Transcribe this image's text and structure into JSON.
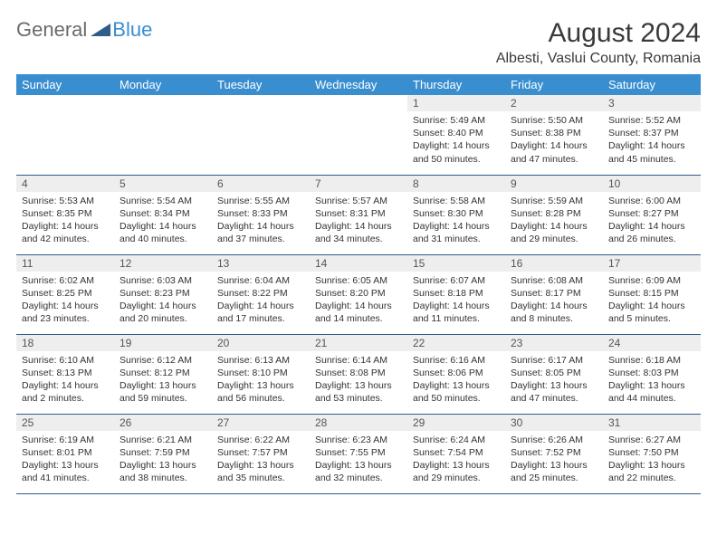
{
  "brand": {
    "general": "General",
    "blue": "Blue"
  },
  "header": {
    "title": "August 2024",
    "location": "Albesti, Vaslui County, Romania"
  },
  "colors": {
    "header_bar": "#398ed0",
    "header_text": "#ffffff",
    "daynum_bg": "#eeeeee",
    "row_border": "#2f5d8a",
    "logo_gray": "#6b6b6b",
    "logo_blue": "#398ed0"
  },
  "days_of_week": [
    "Sunday",
    "Monday",
    "Tuesday",
    "Wednesday",
    "Thursday",
    "Friday",
    "Saturday"
  ],
  "weeks": [
    [
      null,
      null,
      null,
      null,
      {
        "n": "1",
        "sunrise": "Sunrise: 5:49 AM",
        "sunset": "Sunset: 8:40 PM",
        "dl": "Daylight: 14 hours and 50 minutes."
      },
      {
        "n": "2",
        "sunrise": "Sunrise: 5:50 AM",
        "sunset": "Sunset: 8:38 PM",
        "dl": "Daylight: 14 hours and 47 minutes."
      },
      {
        "n": "3",
        "sunrise": "Sunrise: 5:52 AM",
        "sunset": "Sunset: 8:37 PM",
        "dl": "Daylight: 14 hours and 45 minutes."
      }
    ],
    [
      {
        "n": "4",
        "sunrise": "Sunrise: 5:53 AM",
        "sunset": "Sunset: 8:35 PM",
        "dl": "Daylight: 14 hours and 42 minutes."
      },
      {
        "n": "5",
        "sunrise": "Sunrise: 5:54 AM",
        "sunset": "Sunset: 8:34 PM",
        "dl": "Daylight: 14 hours and 40 minutes."
      },
      {
        "n": "6",
        "sunrise": "Sunrise: 5:55 AM",
        "sunset": "Sunset: 8:33 PM",
        "dl": "Daylight: 14 hours and 37 minutes."
      },
      {
        "n": "7",
        "sunrise": "Sunrise: 5:57 AM",
        "sunset": "Sunset: 8:31 PM",
        "dl": "Daylight: 14 hours and 34 minutes."
      },
      {
        "n": "8",
        "sunrise": "Sunrise: 5:58 AM",
        "sunset": "Sunset: 8:30 PM",
        "dl": "Daylight: 14 hours and 31 minutes."
      },
      {
        "n": "9",
        "sunrise": "Sunrise: 5:59 AM",
        "sunset": "Sunset: 8:28 PM",
        "dl": "Daylight: 14 hours and 29 minutes."
      },
      {
        "n": "10",
        "sunrise": "Sunrise: 6:00 AM",
        "sunset": "Sunset: 8:27 PM",
        "dl": "Daylight: 14 hours and 26 minutes."
      }
    ],
    [
      {
        "n": "11",
        "sunrise": "Sunrise: 6:02 AM",
        "sunset": "Sunset: 8:25 PM",
        "dl": "Daylight: 14 hours and 23 minutes."
      },
      {
        "n": "12",
        "sunrise": "Sunrise: 6:03 AM",
        "sunset": "Sunset: 8:23 PM",
        "dl": "Daylight: 14 hours and 20 minutes."
      },
      {
        "n": "13",
        "sunrise": "Sunrise: 6:04 AM",
        "sunset": "Sunset: 8:22 PM",
        "dl": "Daylight: 14 hours and 17 minutes."
      },
      {
        "n": "14",
        "sunrise": "Sunrise: 6:05 AM",
        "sunset": "Sunset: 8:20 PM",
        "dl": "Daylight: 14 hours and 14 minutes."
      },
      {
        "n": "15",
        "sunrise": "Sunrise: 6:07 AM",
        "sunset": "Sunset: 8:18 PM",
        "dl": "Daylight: 14 hours and 11 minutes."
      },
      {
        "n": "16",
        "sunrise": "Sunrise: 6:08 AM",
        "sunset": "Sunset: 8:17 PM",
        "dl": "Daylight: 14 hours and 8 minutes."
      },
      {
        "n": "17",
        "sunrise": "Sunrise: 6:09 AM",
        "sunset": "Sunset: 8:15 PM",
        "dl": "Daylight: 14 hours and 5 minutes."
      }
    ],
    [
      {
        "n": "18",
        "sunrise": "Sunrise: 6:10 AM",
        "sunset": "Sunset: 8:13 PM",
        "dl": "Daylight: 14 hours and 2 minutes."
      },
      {
        "n": "19",
        "sunrise": "Sunrise: 6:12 AM",
        "sunset": "Sunset: 8:12 PM",
        "dl": "Daylight: 13 hours and 59 minutes."
      },
      {
        "n": "20",
        "sunrise": "Sunrise: 6:13 AM",
        "sunset": "Sunset: 8:10 PM",
        "dl": "Daylight: 13 hours and 56 minutes."
      },
      {
        "n": "21",
        "sunrise": "Sunrise: 6:14 AM",
        "sunset": "Sunset: 8:08 PM",
        "dl": "Daylight: 13 hours and 53 minutes."
      },
      {
        "n": "22",
        "sunrise": "Sunrise: 6:16 AM",
        "sunset": "Sunset: 8:06 PM",
        "dl": "Daylight: 13 hours and 50 minutes."
      },
      {
        "n": "23",
        "sunrise": "Sunrise: 6:17 AM",
        "sunset": "Sunset: 8:05 PM",
        "dl": "Daylight: 13 hours and 47 minutes."
      },
      {
        "n": "24",
        "sunrise": "Sunrise: 6:18 AM",
        "sunset": "Sunset: 8:03 PM",
        "dl": "Daylight: 13 hours and 44 minutes."
      }
    ],
    [
      {
        "n": "25",
        "sunrise": "Sunrise: 6:19 AM",
        "sunset": "Sunset: 8:01 PM",
        "dl": "Daylight: 13 hours and 41 minutes."
      },
      {
        "n": "26",
        "sunrise": "Sunrise: 6:21 AM",
        "sunset": "Sunset: 7:59 PM",
        "dl": "Daylight: 13 hours and 38 minutes."
      },
      {
        "n": "27",
        "sunrise": "Sunrise: 6:22 AM",
        "sunset": "Sunset: 7:57 PM",
        "dl": "Daylight: 13 hours and 35 minutes."
      },
      {
        "n": "28",
        "sunrise": "Sunrise: 6:23 AM",
        "sunset": "Sunset: 7:55 PM",
        "dl": "Daylight: 13 hours and 32 minutes."
      },
      {
        "n": "29",
        "sunrise": "Sunrise: 6:24 AM",
        "sunset": "Sunset: 7:54 PM",
        "dl": "Daylight: 13 hours and 29 minutes."
      },
      {
        "n": "30",
        "sunrise": "Sunrise: 6:26 AM",
        "sunset": "Sunset: 7:52 PM",
        "dl": "Daylight: 13 hours and 25 minutes."
      },
      {
        "n": "31",
        "sunrise": "Sunrise: 6:27 AM",
        "sunset": "Sunset: 7:50 PM",
        "dl": "Daylight: 13 hours and 22 minutes."
      }
    ]
  ]
}
